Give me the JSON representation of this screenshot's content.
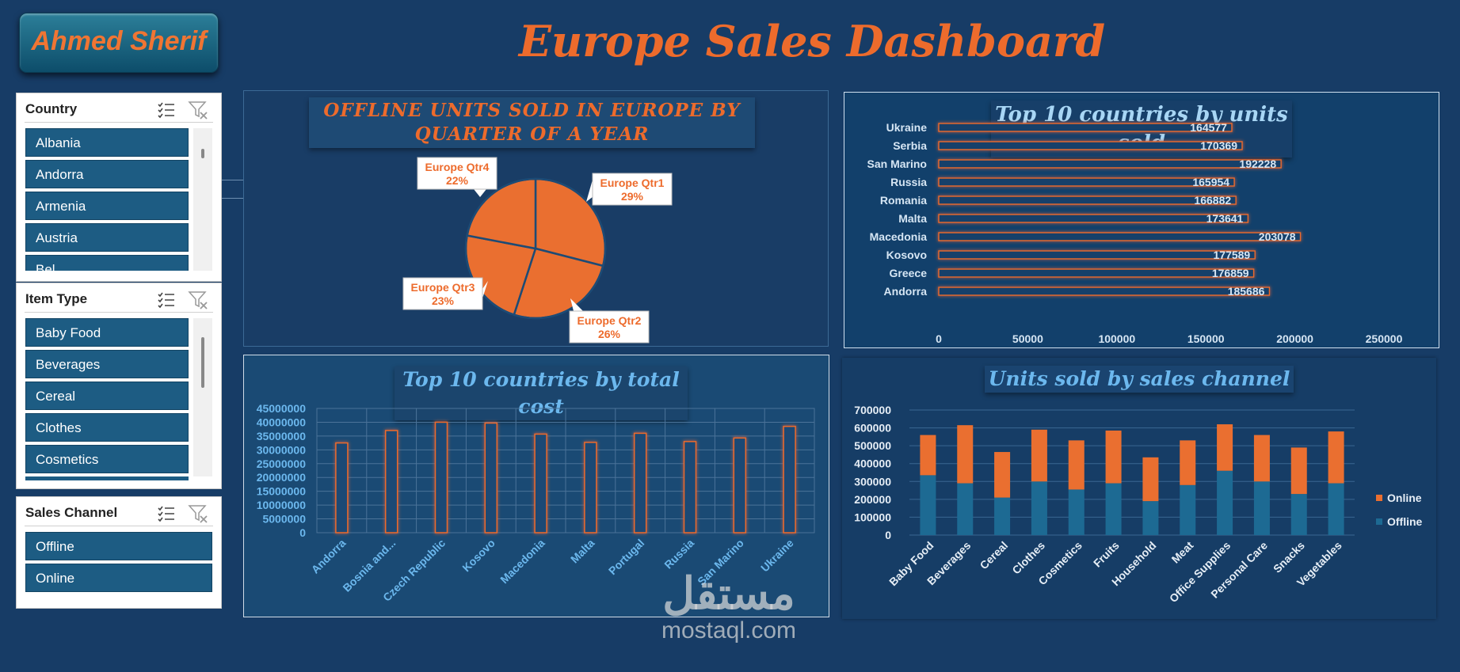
{
  "header": {
    "logo_text": "Ahmed Sherif",
    "title": "Europe Sales Dashboard"
  },
  "slicers": {
    "country": {
      "title": "Country",
      "items": [
        "Albania",
        "Andorra",
        "Armenia",
        "Austria",
        "Bel..."
      ]
    },
    "item_type": {
      "title": "Item Type",
      "items": [
        "Baby Food",
        "Beverages",
        "Cereal",
        "Clothes",
        "Cosmetics"
      ]
    },
    "sales_channel": {
      "title": "Sales Channel",
      "items": [
        "Offline",
        "Online"
      ]
    }
  },
  "colors": {
    "background": "#173c66",
    "accent": "#ed6b2c",
    "chart_blue": "#1d6a93",
    "light_blue": "#8ec8f0"
  },
  "watermark": {
    "arabic": "مستقل",
    "latin": "mostaql.com"
  },
  "chart_data": [
    {
      "type": "pie",
      "title": "OFFLINE UNITS SOLD IN EUROPE BY QUARTER OF A YEAR",
      "categories": [
        "Europe Qtr1",
        "Europe Qtr2",
        "Europe Qtr3",
        "Europe Qtr4"
      ],
      "values": [
        29,
        26,
        23,
        22
      ],
      "value_labels": [
        "29%",
        "26%",
        "23%",
        "22%"
      ],
      "color": "#ea6f30"
    },
    {
      "type": "bar",
      "orientation": "horizontal",
      "title": "Top 10 countries by units sold",
      "categories": [
        "Ukraine",
        "Serbia",
        "San Marino",
        "Russia",
        "Romania",
        "Malta",
        "Macedonia",
        "Kosovo",
        "Greece",
        "Andorra"
      ],
      "values": [
        164577,
        170369,
        192228,
        165954,
        166882,
        173641,
        203078,
        177589,
        176859,
        185686
      ],
      "xlim": [
        0,
        250000
      ],
      "xticks": [
        "0",
        "50000",
        "100000",
        "150000",
        "200000",
        "250000"
      ]
    },
    {
      "type": "bar",
      "title": "Top 10 countries by total cost",
      "categories": [
        "Andorra",
        "Bosnia and...",
        "Czech Republic",
        "Kosovo",
        "Macedonia",
        "Malta",
        "Portugal",
        "Russia",
        "San Marino",
        "Ukraine"
      ],
      "values": [
        32500000,
        37000000,
        40000000,
        39700000,
        35700000,
        32700000,
        36000000,
        33000000,
        34300000,
        38500000
      ],
      "ylim": [
        0,
        45000000
      ],
      "yticks": [
        "45000000",
        "40000000",
        "35000000",
        "30000000",
        "25000000",
        "20000000",
        "15000000",
        "10000000",
        "5000000",
        "0"
      ],
      "grid": true
    },
    {
      "type": "bar",
      "stacked": true,
      "title": "Units sold by sales channel",
      "categories": [
        "Baby Food",
        "Beverages",
        "Cereal",
        "Clothes",
        "Cosmetics",
        "Fruits",
        "Household",
        "Meat",
        "Office Supplies",
        "Personal Care",
        "Snacks",
        "Vegetables"
      ],
      "series": [
        {
          "name": "Offline",
          "values": [
            335000,
            290000,
            210000,
            300000,
            255000,
            290000,
            190000,
            280000,
            360000,
            300000,
            230000,
            290000
          ],
          "color": "#1d6a93"
        },
        {
          "name": "Online",
          "values": [
            225000,
            325000,
            255000,
            290000,
            275000,
            295000,
            245000,
            250000,
            260000,
            260000,
            260000,
            290000
          ],
          "color": "#ea6f30"
        }
      ],
      "ylim": [
        0,
        700000
      ],
      "yticks": [
        "700000",
        "600000",
        "500000",
        "400000",
        "300000",
        "200000",
        "100000",
        "0"
      ],
      "legend": "right",
      "grid": true
    }
  ]
}
